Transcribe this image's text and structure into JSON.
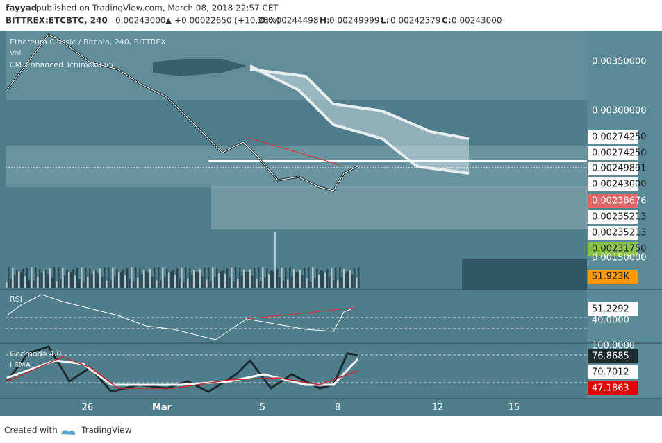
{
  "header": {
    "author": "fayyad",
    "published": " published on TradingView.com, March 08, 2018 22:57 CET",
    "symbol": "BITTREX:ETCBTC, 240",
    "last": "0.00243000",
    "change": "▲ +0.00022650 (+10.28%)",
    "ohlc": [
      {
        "key": "O:",
        "value": "0.00244498"
      },
      {
        "key": "H:",
        "value": "0.00249999"
      },
      {
        "key": "L:",
        "value": "0.00242379"
      },
      {
        "key": "C:",
        "value": "0.00243000"
      }
    ]
  },
  "legends": {
    "main": "Ethereum Classic / Bitcoin, 240, BITTREX",
    "volume": "Vol",
    "indicator": "CM_Enhanced_Ichimoku v5",
    "rsi": "RSI",
    "godmode": "Godmode 4.0",
    "lsma": "LSMA"
  },
  "price_axis": [
    "0.00350000",
    "0.00300000",
    "0.00274250",
    "0.00274250",
    "0.00249891",
    "0.00243000",
    "0.00238676",
    "0.00235213",
    "0.00235213",
    "0.00231750",
    "0.00150000",
    "51.923K"
  ],
  "rsi_axis": [
    "51.2292",
    "40.0000"
  ],
  "godmode_axis": [
    "100.0000",
    "76.8685",
    "70.7012",
    "47.1863"
  ],
  "time_axis": [
    "26",
    "Mar",
    "5",
    "8",
    "12",
    "15"
  ],
  "footer": {
    "created": "Created with",
    "brand": "TradingView"
  }
}
